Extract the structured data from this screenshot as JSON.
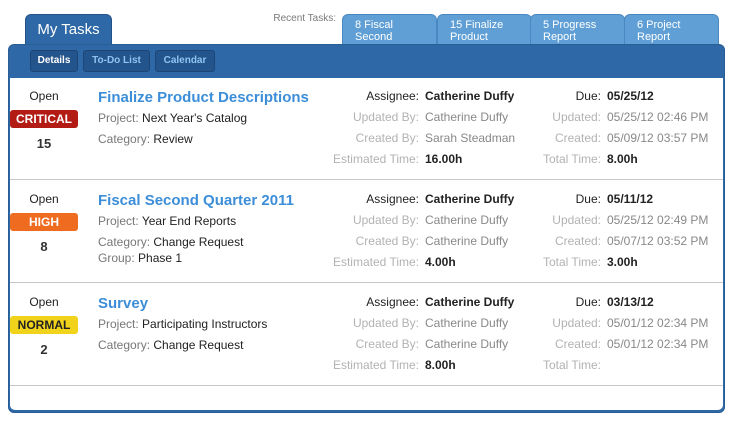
{
  "header": {
    "title": "My Tasks",
    "recent_label": "Recent Tasks:",
    "recent_tabs": [
      {
        "line1": "8 Fiscal",
        "line2": "Second"
      },
      {
        "line1": "15 Finalize",
        "line2": "Product"
      },
      {
        "line1": "5 Progress",
        "line2": "Report"
      },
      {
        "line1": "6 Project",
        "line2": "Report"
      }
    ]
  },
  "subtabs": [
    {
      "label": "Details",
      "active": true
    },
    {
      "label": "To-Do List",
      "active": false
    },
    {
      "label": "Calendar",
      "active": false
    }
  ],
  "labels": {
    "project": "Project:",
    "category": "Category:",
    "group": "Group:",
    "assignee": "Assignee:",
    "updated_by": "Updated By:",
    "created_by": "Created By:",
    "estimated_time": "Estimated Time:",
    "due": "Due:",
    "updated": "Updated:",
    "created": "Created:",
    "total_time": "Total Time:"
  },
  "colors": {
    "critical": "#b21c14",
    "high": "#ee6b1f",
    "normal": "#f0d31a",
    "accent": "#3c8ed8",
    "panel": "#2f68a6"
  },
  "tasks": [
    {
      "status": "Open",
      "priority": "CRITICAL",
      "priority_level": "critical",
      "number": "15",
      "name": "Finalize Product Descriptions",
      "project": "Next Year's Catalog",
      "category": "Review",
      "group": "",
      "assignee": "Catherine Duffy",
      "updated_by": "Catherine Duffy",
      "created_by": "Sarah Steadman",
      "estimated_time": "16.00h",
      "due": "05/25/12",
      "updated": "05/25/12 02:46 PM",
      "created": "05/09/12 03:57 PM",
      "total_time": "8.00h"
    },
    {
      "status": "Open",
      "priority": "HIGH",
      "priority_level": "high",
      "number": "8",
      "name": "Fiscal Second Quarter 2011",
      "project": "Year End Reports",
      "category": "Change Request",
      "group": "Phase 1",
      "assignee": "Catherine Duffy",
      "updated_by": "Catherine Duffy",
      "created_by": "Catherine Duffy",
      "estimated_time": "4.00h",
      "due": "05/11/12",
      "updated": "05/25/12 02:49 PM",
      "created": "05/07/12 03:52 PM",
      "total_time": "3.00h"
    },
    {
      "status": "Open",
      "priority": "NORMAL",
      "priority_level": "normal",
      "number": "2",
      "name": "Survey",
      "project": "Participating Instructors",
      "category": "Change Request",
      "group": "",
      "assignee": "Catherine Duffy",
      "updated_by": "Catherine Duffy",
      "created_by": "Catherine Duffy",
      "estimated_time": "8.00h",
      "due": "03/13/12",
      "updated": "05/01/12 02:34 PM",
      "created": "05/01/12 02:34 PM",
      "total_time": ""
    }
  ]
}
